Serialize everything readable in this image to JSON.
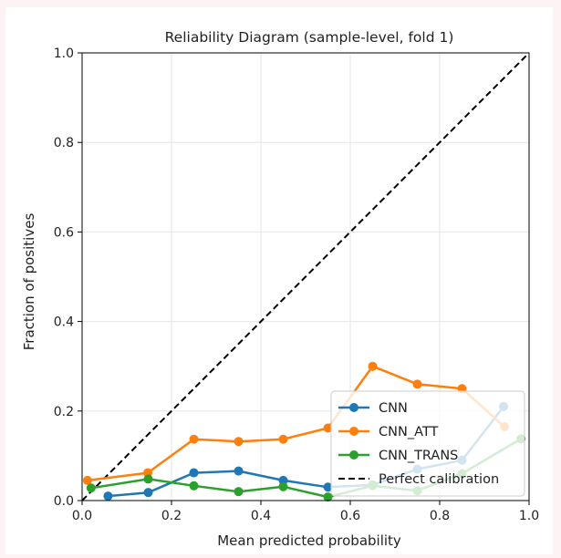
{
  "chart_data": {
    "type": "line",
    "title": "Reliability Diagram (sample-level, fold 1)",
    "xlabel": "Mean predicted probability",
    "ylabel": "Fraction of positives",
    "xlim": [
      0,
      1
    ],
    "ylim": [
      0,
      1
    ],
    "xticks": [
      "0.0",
      "0.2",
      "0.4",
      "0.6",
      "0.8",
      "1.0"
    ],
    "yticks": [
      "0.0",
      "0.2",
      "0.4",
      "0.6",
      "0.8",
      "1.0"
    ],
    "grid": true,
    "legend_position": "lower-right",
    "series": [
      {
        "name": "CNN",
        "color": "#1f77b4",
        "x": [
          0.058,
          0.148,
          0.25,
          0.35,
          0.45,
          0.55,
          0.65,
          0.75,
          0.85,
          0.943
        ],
        "y": [
          0.01,
          0.018,
          0.062,
          0.066,
          0.045,
          0.03,
          0.035,
          0.07,
          0.09,
          0.21
        ]
      },
      {
        "name": "CNN_ATT",
        "color": "#ff7f0e",
        "x": [
          0.012,
          0.147,
          0.25,
          0.35,
          0.45,
          0.55,
          0.65,
          0.75,
          0.85,
          0.945
        ],
        "y": [
          0.045,
          0.062,
          0.137,
          0.132,
          0.137,
          0.162,
          0.3,
          0.26,
          0.25,
          0.165
        ]
      },
      {
        "name": "CNN_TRANS",
        "color": "#2ca02c",
        "x": [
          0.02,
          0.148,
          0.25,
          0.35,
          0.45,
          0.55,
          0.65,
          0.75,
          0.85,
          0.982
        ],
        "y": [
          0.028,
          0.048,
          0.033,
          0.02,
          0.031,
          0.008,
          0.033,
          0.022,
          0.06,
          0.138
        ]
      }
    ],
    "reference": {
      "name": "Perfect calibration",
      "color": "#000000",
      "x": [
        0,
        1
      ],
      "y": [
        0,
        1
      ]
    }
  }
}
